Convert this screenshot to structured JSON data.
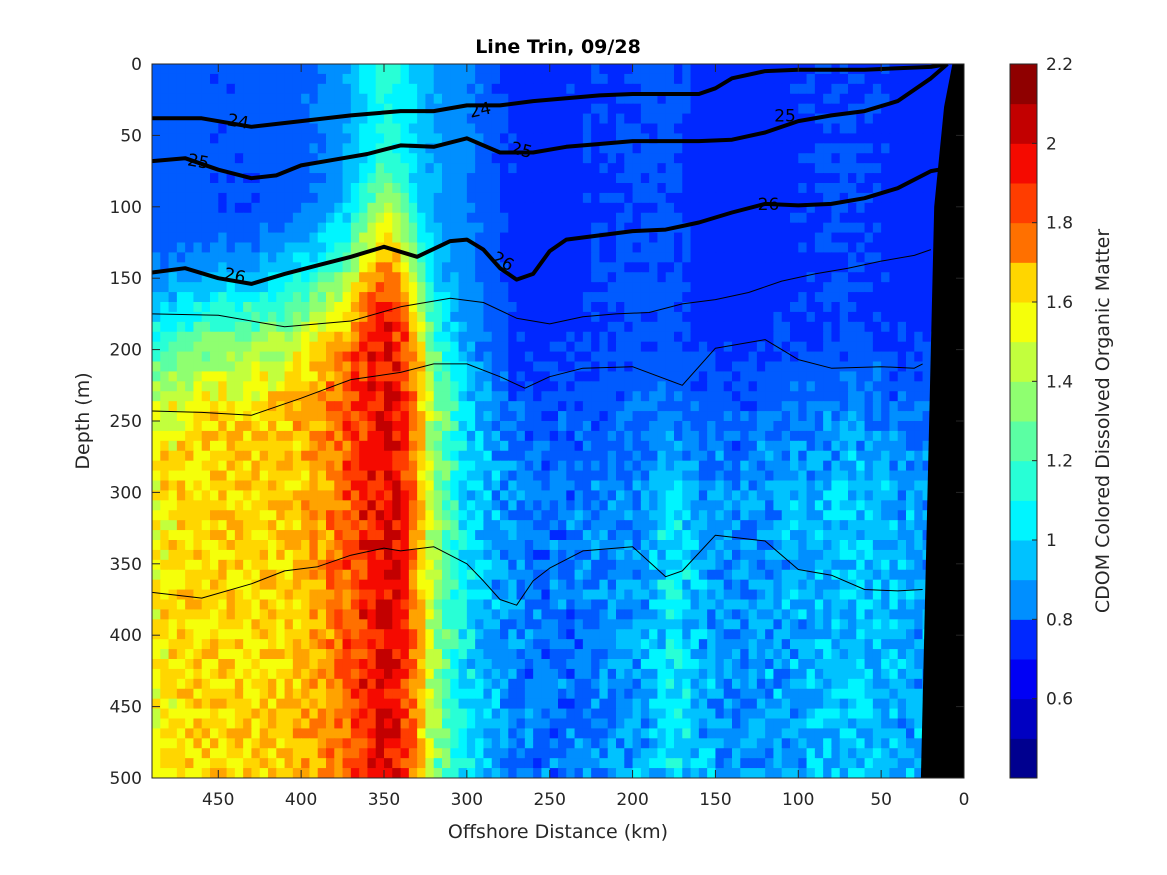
{
  "chart_data": {
    "type": "heatmap",
    "subtype": "filled-contour section with labeled density contours",
    "title": "Line Trin, 09/28",
    "xlabel": "Offshore Distance (km)",
    "ylabel": "Depth (m)",
    "colorbar_label": "CDOM Colored Dissolved Organic Matter",
    "xlim": [
      490,
      0
    ],
    "x_reversed": true,
    "ylim": [
      0,
      500
    ],
    "y_reversed": true,
    "x_ticks": [
      450,
      400,
      350,
      300,
      250,
      200,
      150,
      100,
      50,
      0
    ],
    "y_ticks": [
      0,
      50,
      100,
      150,
      200,
      250,
      300,
      350,
      400,
      450,
      500
    ],
    "colorbar_range": [
      0.4,
      2.2
    ],
    "colorbar_ticks": [
      0.6,
      0.8,
      1,
      1.2,
      1.4,
      1.6,
      1.8,
      2,
      2.2
    ],
    "colorbar_tick_labels": [
      "0.6",
      "0.8",
      "1",
      "1.2",
      "1.4",
      "1.6",
      "1.8",
      "2",
      "2.2"
    ],
    "colorbar_levels": [
      0.4,
      0.5,
      0.6,
      0.7,
      0.8,
      0.9,
      1.0,
      1.1,
      1.2,
      1.3,
      1.4,
      1.5,
      1.6,
      1.7,
      1.8,
      1.9,
      2.0,
      2.1,
      2.2
    ],
    "colormap": [
      "#00008f",
      "#0000c2",
      "#0000f5",
      "#0028ff",
      "#005bff",
      "#008fff",
      "#00c2ff",
      "#00f5ff",
      "#28ffd6",
      "#5bffa3",
      "#8fff70",
      "#c2ff3d",
      "#f5ff0a",
      "#ffd600",
      "#ffa300",
      "#ff7000",
      "#ff3d00",
      "#f50a00",
      "#c20000",
      "#8f0000"
    ],
    "cdom_profile_by_distance": {
      "x": [
        490,
        470,
        450,
        430,
        410,
        390,
        370,
        360,
        350,
        340,
        330,
        320,
        310,
        300,
        290,
        270,
        250,
        230,
        210,
        190,
        175,
        160,
        140,
        120,
        100,
        80,
        60,
        40,
        20,
        0
      ],
      "upper_value": [
        0.82,
        0.8,
        0.78,
        0.78,
        0.8,
        0.85,
        0.95,
        1.05,
        1.15,
        1.1,
        1.0,
        0.95,
        0.9,
        0.88,
        0.82,
        0.72,
        0.72,
        0.74,
        0.76,
        0.78,
        0.78,
        0.72,
        0.7,
        0.72,
        0.74,
        0.76,
        0.76,
        0.72,
        0.72,
        0.72
      ],
      "deep_value": [
        1.55,
        1.6,
        1.6,
        1.6,
        1.62,
        1.7,
        1.85,
        1.95,
        2.0,
        1.95,
        1.75,
        1.35,
        1.2,
        1.05,
        0.98,
        0.88,
        0.84,
        0.86,
        0.9,
        0.95,
        1.1,
        0.95,
        0.9,
        0.92,
        0.95,
        0.98,
        1.0,
        0.95,
        0.92,
        0.9
      ],
      "transition_depth": [
        200,
        190,
        180,
        175,
        170,
        160,
        150,
        130,
        120,
        130,
        150,
        170,
        190,
        210,
        225,
        235,
        245,
        250,
        255,
        260,
        270,
        250,
        245,
        240,
        240,
        240,
        240,
        240,
        240,
        240
      ]
    },
    "density_contours": [
      {
        "level": "24",
        "bold": true,
        "x": [
          490,
          460,
          430,
          400,
          370,
          340,
          320,
          300,
          280,
          260,
          240,
          220,
          200,
          180,
          160,
          150,
          140,
          120,
          100,
          80,
          60,
          40,
          20,
          10
        ],
        "y": [
          38,
          38,
          44,
          40,
          36,
          33,
          33,
          29,
          29,
          26,
          24,
          22,
          21,
          21,
          21,
          17,
          10,
          5,
          4,
          4,
          4,
          3,
          2,
          0
        ]
      },
      {
        "level": "25",
        "bold": true,
        "x": [
          490,
          470,
          450,
          430,
          415,
          400,
          380,
          360,
          340,
          320,
          300,
          280,
          260,
          240,
          220,
          200,
          180,
          160,
          140,
          120,
          100,
          80,
          60,
          40,
          20,
          10
        ],
        "y": [
          68,
          66,
          74,
          80,
          78,
          71,
          67,
          63,
          57,
          58,
          52,
          62,
          62,
          58,
          56,
          54,
          54,
          54,
          53,
          48,
          40,
          36,
          33,
          26,
          10,
          0
        ]
      },
      {
        "level": "26",
        "bold": true,
        "x": [
          490,
          470,
          450,
          430,
          410,
          390,
          370,
          350,
          330,
          310,
          300,
          290,
          280,
          270,
          260,
          250,
          240,
          220,
          200,
          180,
          160,
          140,
          120,
          100,
          80,
          60,
          40,
          20,
          10
        ],
        "y": [
          146,
          143,
          150,
          154,
          147,
          141,
          135,
          128,
          135,
          124,
          123,
          130,
          143,
          151,
          147,
          131,
          123,
          120,
          117,
          116,
          111,
          104,
          98,
          99,
          98,
          94,
          87,
          75,
          73
        ]
      },
      {
        "level": "",
        "bold": false,
        "x": [
          490,
          450,
          410,
          370,
          340,
          310,
          290,
          270,
          250,
          230,
          210,
          190,
          170,
          150,
          130,
          110,
          90,
          70,
          50,
          30,
          20
        ],
        "y": [
          175,
          176,
          184,
          180,
          170,
          164,
          167,
          178,
          182,
          177,
          175,
          174,
          168,
          165,
          160,
          152,
          147,
          143,
          138,
          134,
          130
        ]
      },
      {
        "level": "",
        "bold": false,
        "x": [
          490,
          460,
          430,
          400,
          370,
          340,
          320,
          300,
          280,
          265,
          250,
          230,
          200,
          170,
          150,
          120,
          100,
          80,
          50,
          30,
          25
        ],
        "y": [
          243,
          244,
          246,
          234,
          221,
          216,
          210,
          210,
          219,
          227,
          219,
          213,
          212,
          225,
          199,
          193,
          207,
          213,
          212,
          213,
          210
        ]
      },
      {
        "level": "",
        "bold": false,
        "x": [
          490,
          460,
          430,
          410,
          390,
          370,
          350,
          340,
          320,
          300,
          290,
          280,
          270,
          260,
          250,
          230,
          200,
          180,
          170,
          150,
          120,
          100,
          80,
          60,
          40,
          25
        ],
        "y": [
          370,
          374,
          364,
          355,
          352,
          344,
          339,
          341,
          338,
          350,
          362,
          375,
          379,
          362,
          353,
          341,
          338,
          359,
          355,
          330,
          334,
          354,
          358,
          368,
          369,
          368
        ]
      }
    ],
    "contour_labels": [
      {
        "text": "24",
        "x": 438,
        "y": 40,
        "angle": 10
      },
      {
        "text": "24",
        "x": 292,
        "y": 32,
        "angle": -12
      },
      {
        "text": "25",
        "x": 462,
        "y": 68,
        "angle": 10
      },
      {
        "text": "25",
        "x": 267,
        "y": 60,
        "angle": 14
      },
      {
        "text": "25",
        "x": 108,
        "y": 36,
        "angle": 0
      },
      {
        "text": "26",
        "x": 440,
        "y": 148,
        "angle": 12
      },
      {
        "text": "26",
        "x": 278,
        "y": 138,
        "angle": 30
      },
      {
        "text": "26",
        "x": 118,
        "y": 98,
        "angle": 0
      }
    ],
    "bottom_mask": {
      "color": "#000000",
      "x": [
        0,
        0,
        8,
        12,
        18,
        22,
        26
      ],
      "y": [
        0,
        500,
        500,
        30,
        100,
        300,
        500
      ]
    }
  }
}
